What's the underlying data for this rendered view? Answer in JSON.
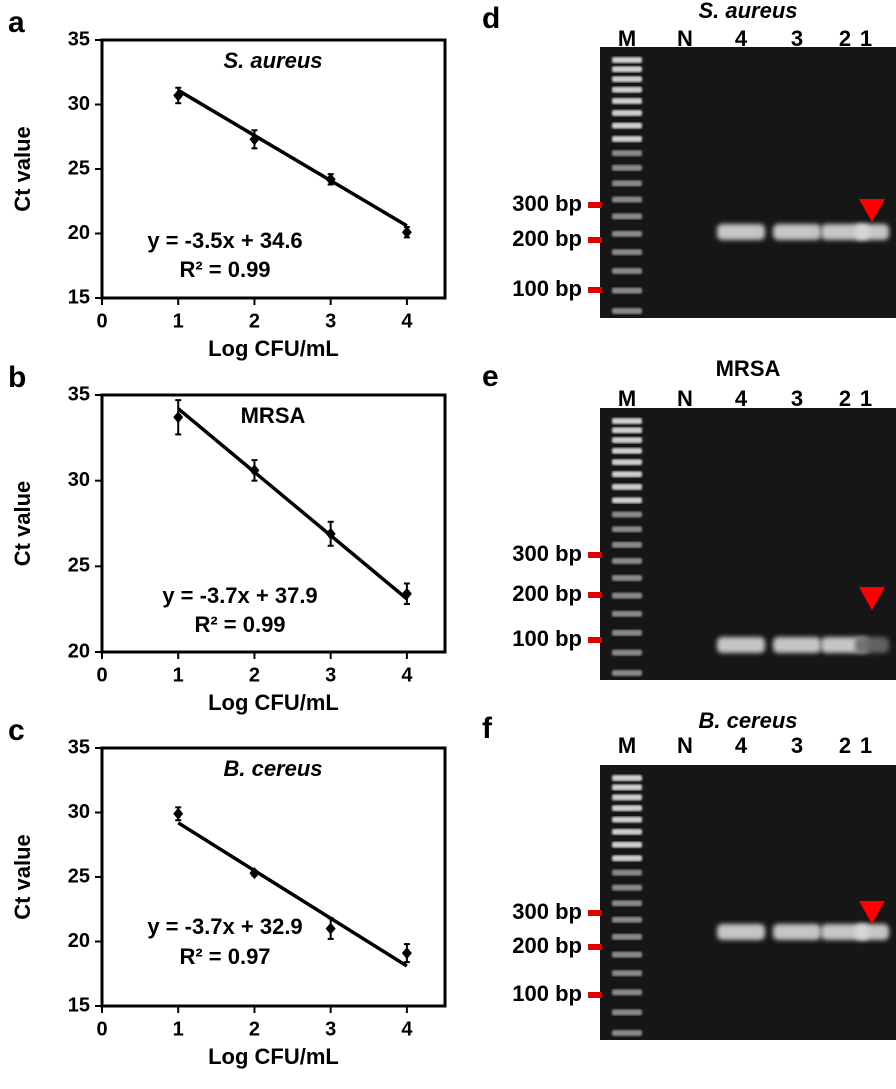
{
  "chart_data": [
    {
      "type": "scatter",
      "panel": "a",
      "title": "S. aureus",
      "title_italic": true,
      "x_label": "Log CFU/mL",
      "y_label": "Ct value",
      "x": [
        1,
        2,
        3,
        4
      ],
      "values": [
        30.7,
        27.3,
        24.2,
        20.1
      ],
      "errors": [
        0.6,
        0.7,
        0.4,
        0.4
      ],
      "color": "#000000",
      "trendline": {
        "slope": -3.5,
        "intercept": 34.6
      },
      "equation": "y = -3.5x + 34.6",
      "r_squared": "R² = 0.99",
      "xlim": [
        0,
        4.5
      ],
      "xticks": [
        0,
        1,
        2,
        3,
        4
      ],
      "ylim": [
        15,
        35
      ],
      "yticks": [
        15,
        20,
        25,
        30,
        35
      ]
    },
    {
      "type": "scatter",
      "panel": "b",
      "title": "MRSA",
      "title_italic": false,
      "x_label": "Log CFU/mL",
      "y_label": "Ct value",
      "x": [
        1,
        2,
        3,
        4
      ],
      "values": [
        33.7,
        30.6,
        26.9,
        23.4
      ],
      "errors": [
        1.0,
        0.6,
        0.7,
        0.6
      ],
      "color": "#000000",
      "trendline": {
        "slope": -3.7,
        "intercept": 37.9
      },
      "equation": "y = -3.7x + 37.9",
      "r_squared": "R² = 0.99",
      "xlim": [
        0,
        4.5
      ],
      "xticks": [
        0,
        1,
        2,
        3,
        4
      ],
      "ylim": [
        20,
        35
      ],
      "yticks": [
        20,
        25,
        30,
        35
      ]
    },
    {
      "type": "scatter",
      "panel": "c",
      "title": "B. cereus",
      "title_italic": true,
      "x_label": "Log CFU/mL",
      "y_label": "Ct value",
      "x": [
        1,
        2,
        3,
        4
      ],
      "values": [
        29.9,
        25.3,
        21.0,
        19.1
      ],
      "errors": [
        0.5,
        0.2,
        0.8,
        0.7
      ],
      "color": "#000000",
      "trendline": {
        "slope": -3.7,
        "intercept": 32.9
      },
      "equation": "y = -3.7x + 32.9",
      "r_squared": "R² = 0.97",
      "xlim": [
        0,
        4.5
      ],
      "xticks": [
        0,
        1,
        2,
        3,
        4
      ],
      "ylim": [
        15,
        35
      ],
      "yticks": [
        15,
        20,
        25,
        30,
        35
      ]
    }
  ],
  "gels": [
    {
      "panel": "d",
      "title": "S. aureus",
      "title_italic": true,
      "lanes": [
        "M",
        "N",
        "4",
        "3",
        "2",
        "1"
      ],
      "markers": [
        "300 bp",
        "200 bp",
        "100 bp"
      ]
    },
    {
      "panel": "e",
      "title": "MRSA",
      "title_italic": false,
      "lanes": [
        "M",
        "N",
        "4",
        "3",
        "2",
        "1"
      ],
      "markers": [
        "300 bp",
        "200 bp",
        "100 bp"
      ]
    },
    {
      "panel": "f",
      "title": "B. cereus",
      "title_italic": true,
      "lanes": [
        "M",
        "N",
        "4",
        "3",
        "2",
        "1"
      ],
      "markers": [
        "300 bp",
        "200 bp",
        "100 bp"
      ]
    }
  ]
}
